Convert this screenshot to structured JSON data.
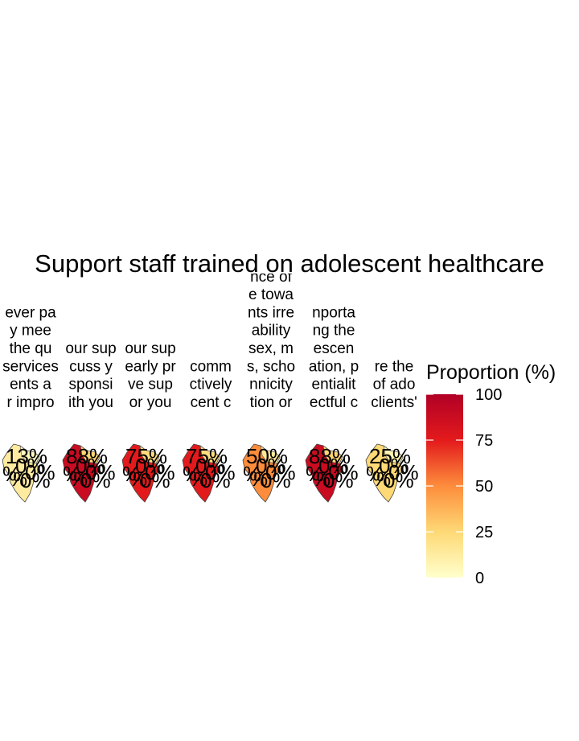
{
  "chart_data": {
    "type": "heatmap",
    "title": "Support staff trained on adolescent healthcare",
    "facet_titles": [
      [
        "ever pa",
        "y mee",
        "the qu",
        "services",
        "ents a",
        "r impro"
      ],
      [
        "our sup",
        "cuss y",
        "sponsi",
        "ith you"
      ],
      [
        "our sup",
        "early pr",
        "ve sup",
        "or you"
      ],
      [
        "comm",
        "ctively",
        "cent c"
      ],
      [
        "nce of",
        "e towa",
        "nts irre",
        "ability",
        "sex, m",
        "s, scho",
        "nnicity",
        "tion or"
      ],
      [
        "nporta",
        "ng the",
        "escen",
        "ation, p",
        "entialit",
        "ectful c"
      ],
      [
        "re the",
        "of ado",
        "clients'"
      ]
    ],
    "panels": [
      {
        "value": 13,
        "label": "13%"
      },
      {
        "value": 88,
        "label": "88%"
      },
      {
        "value": 75,
        "label": "75%"
      },
      {
        "value": 75,
        "label": "75%"
      },
      {
        "value": 50,
        "label": "50%"
      },
      {
        "value": 88,
        "label": "88%"
      },
      {
        "value": 25,
        "label": "25%"
      }
    ],
    "legend": {
      "title": "Proportion (%)",
      "ticks": [
        "100",
        "75",
        "50",
        "25",
        "0"
      ],
      "range": [
        0,
        100
      ],
      "low_color": "#ffffcc",
      "mid_color": "#fd8d3c",
      "high_color": "#b10026"
    },
    "extra_labels": [
      "0%",
      "0%",
      "%",
      "0%",
      "%",
      "0%"
    ]
  }
}
